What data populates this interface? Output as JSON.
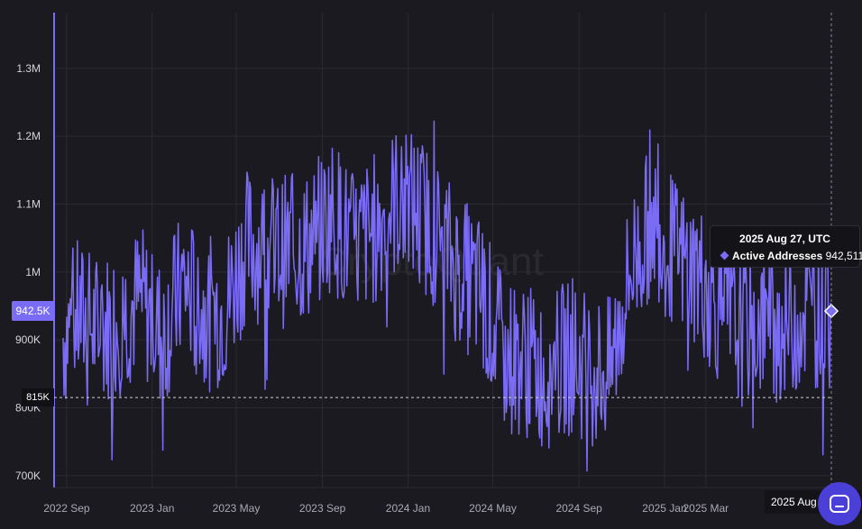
{
  "chart_data": {
    "type": "line",
    "title": "",
    "xlabel": "",
    "ylabel": "",
    "watermark": "CryptoQuant",
    "yticks": [
      "700K",
      "800K",
      "900K",
      "1M",
      "1.1M",
      "1.2M",
      "1.3M"
    ],
    "ylim": [
      640000,
      1340000
    ],
    "xticks": [
      "2022 Sep",
      "2023 Jan",
      "2023 May",
      "2023 Sep",
      "2024 Jan",
      "2024 May",
      "2024 Sep",
      "2025 Jan",
      "2025 Mar"
    ],
    "xrange": [
      "2022-08-27",
      "2025-08-27"
    ],
    "grid": true,
    "series": [
      {
        "name": "Active Addresses",
        "color": "#7b6cf6",
        "x": [
          "2022-08-27",
          "2022-09-15",
          "2022-10-15",
          "2022-11-15",
          "2022-12-15",
          "2023-01-15",
          "2023-02-15",
          "2023-03-15",
          "2023-04-15",
          "2023-05-15",
          "2023-06-15",
          "2023-07-15",
          "2023-08-15",
          "2023-09-15",
          "2023-10-15",
          "2023-11-15",
          "2023-12-15",
          "2024-01-15",
          "2024-02-15",
          "2024-03-15",
          "2024-04-15",
          "2024-05-15",
          "2024-06-15",
          "2024-07-15",
          "2024-08-15",
          "2024-09-15",
          "2024-10-15",
          "2024-11-15",
          "2024-12-15",
          "2025-01-15",
          "2025-02-15",
          "2025-03-15",
          "2025-04-15",
          "2025-05-15",
          "2025-06-15",
          "2025-07-15",
          "2025-08-15",
          "2025-08-27"
        ],
        "values": [
          905000,
          935000,
          915000,
          930000,
          960000,
          905000,
          985000,
          935000,
          945000,
          1040000,
          1035000,
          1030000,
          1040000,
          1090000,
          1035000,
          1065000,
          1105000,
          1095000,
          1050000,
          1000000,
          970000,
          880000,
          870000,
          850000,
          875000,
          860000,
          850000,
          1010000,
          1080000,
          1025000,
          1000000,
          955000,
          915000,
          925000,
          920000,
          940000,
          945000,
          942511
        ],
        "min_value": 675000,
        "max_value": 1310000
      }
    ],
    "reference_line": 815000
  },
  "labels": {
    "current_value_badge": "942.5K",
    "reference_badge": "815K",
    "crosshair_date": "2025 Aug 27"
  },
  "tooltip": {
    "date": "2025 Aug 27, UTC",
    "series_name": "Active Addresses",
    "value": "942,511"
  },
  "chat": {
    "icon": "chat-icon"
  }
}
